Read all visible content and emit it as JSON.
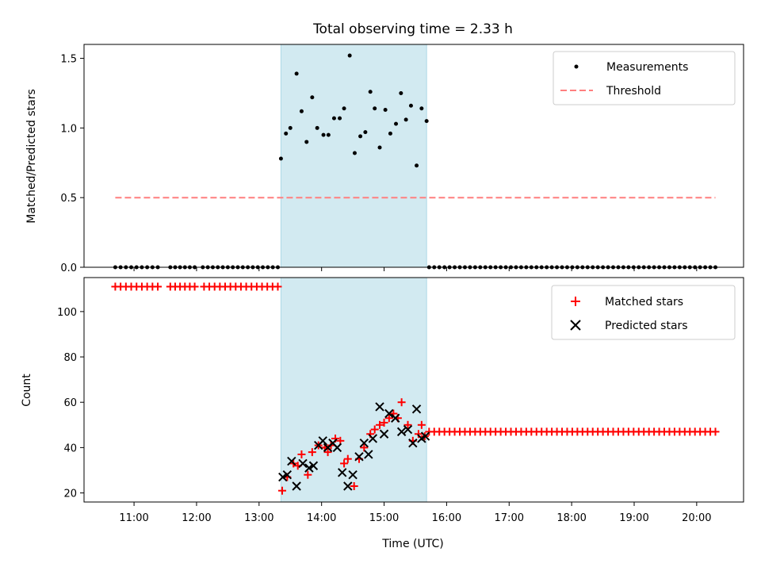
{
  "title": "Total observing time = 2.33 h",
  "colors": {
    "shade": "#add8e6",
    "threshold": "#ff7f7f",
    "matched": "#ff0000",
    "predicted": "#000000",
    "measurement": "#000000"
  },
  "chart_data": [
    {
      "type": "scatter",
      "panel": "top",
      "ylabel": "Matched/Predicted stars",
      "xlim": [
        10.2,
        20.75
      ],
      "ylim": [
        0,
        1.6
      ],
      "yticks": [
        0.0,
        0.5,
        1.0,
        1.5
      ],
      "ytick_labels": [
        "0.0",
        "0.5",
        "1.0",
        "1.5"
      ],
      "shaded_interval": [
        13.35,
        15.68
      ],
      "legend": {
        "placement": "top-right",
        "entries": [
          "Measurements",
          "Threshold"
        ]
      },
      "threshold": {
        "name": "Threshold",
        "y": 0.5,
        "x_range": [
          10.7,
          20.3
        ]
      },
      "series": [
        {
          "name": "Measurements",
          "points": [
            [
              13.35,
              0.78
            ],
            [
              13.43,
              0.96
            ],
            [
              13.5,
              1.0
            ],
            [
              13.6,
              1.39
            ],
            [
              13.68,
              1.12
            ],
            [
              13.76,
              0.9
            ],
            [
              13.85,
              1.22
            ],
            [
              13.93,
              1.0
            ],
            [
              14.03,
              0.95
            ],
            [
              14.11,
              0.95
            ],
            [
              14.2,
              1.07
            ],
            [
              14.29,
              1.07
            ],
            [
              14.36,
              1.14
            ],
            [
              14.45,
              1.52
            ],
            [
              14.53,
              0.82
            ],
            [
              14.62,
              0.94
            ],
            [
              14.7,
              0.97
            ],
            [
              14.78,
              1.26
            ],
            [
              14.85,
              1.14
            ],
            [
              14.93,
              0.86
            ],
            [
              15.02,
              1.13
            ],
            [
              15.1,
              0.96
            ],
            [
              15.19,
              1.03
            ],
            [
              15.27,
              1.25
            ],
            [
              15.35,
              1.06
            ],
            [
              15.43,
              1.16
            ],
            [
              15.52,
              0.73
            ],
            [
              15.6,
              1.14
            ],
            [
              15.68,
              1.05
            ]
          ],
          "zero_runs": [
            [
              10.7,
              11.38
            ],
            [
              11.58,
              11.97
            ],
            [
              12.1,
              13.3
            ],
            [
              15.72,
              20.3
            ]
          ]
        }
      ]
    },
    {
      "type": "scatter",
      "panel": "bottom",
      "ylabel": "Count",
      "xlabel": "Time (UTC)",
      "xlim": [
        10.2,
        20.75
      ],
      "ylim": [
        16,
        115
      ],
      "yticks": [
        20,
        40,
        60,
        80,
        100
      ],
      "ytick_labels": [
        "20",
        "40",
        "60",
        "80",
        "100"
      ],
      "xticks": [
        11,
        12,
        13,
        14,
        15,
        16,
        17,
        18,
        19,
        20
      ],
      "xtick_labels": [
        "11:00",
        "12:00",
        "13:00",
        "14:00",
        "15:00",
        "16:00",
        "17:00",
        "18:00",
        "19:00",
        "20:00"
      ],
      "shaded_interval": [
        13.35,
        15.68
      ],
      "legend": {
        "placement": "top-right",
        "entries": [
          "Matched stars",
          "Predicted stars"
        ]
      },
      "series": [
        {
          "name": "Matched stars",
          "marker": "plus",
          "points": [
            [
              13.37,
              21
            ],
            [
              13.45,
              27
            ],
            [
              13.55,
              33
            ],
            [
              13.62,
              32
            ],
            [
              13.68,
              37
            ],
            [
              13.78,
              28
            ],
            [
              13.85,
              38
            ],
            [
              13.95,
              41
            ],
            [
              14.05,
              40
            ],
            [
              14.1,
              38
            ],
            [
              14.15,
              41
            ],
            [
              14.22,
              44
            ],
            [
              14.3,
              43
            ],
            [
              14.36,
              33
            ],
            [
              14.42,
              35
            ],
            [
              14.52,
              23
            ],
            [
              14.6,
              35
            ],
            [
              14.68,
              40
            ],
            [
              14.78,
              46
            ],
            [
              14.85,
              48
            ],
            [
              14.93,
              50
            ],
            [
              15.0,
              51
            ],
            [
              15.08,
              53
            ],
            [
              15.15,
              55
            ],
            [
              15.22,
              53
            ],
            [
              15.28,
              60
            ],
            [
              15.38,
              50
            ],
            [
              15.46,
              43
            ],
            [
              15.55,
              46
            ],
            [
              15.6,
              50
            ],
            [
              15.65,
              45
            ]
          ],
          "constant_runs": [
            {
              "y": 111,
              "x_range": [
                10.7,
                11.38
              ]
            },
            {
              "y": 111,
              "x_range": [
                11.58,
                11.97
              ]
            },
            {
              "y": 111,
              "x_range": [
                12.12,
                13.3
              ]
            },
            {
              "y": 47,
              "x_range": [
                15.72,
                20.3
              ]
            }
          ]
        },
        {
          "name": "Predicted stars",
          "marker": "x",
          "points": [
            [
              13.38,
              27
            ],
            [
              13.45,
              28
            ],
            [
              13.52,
              34
            ],
            [
              13.6,
              23
            ],
            [
              13.7,
              33
            ],
            [
              13.8,
              31
            ],
            [
              13.87,
              32
            ],
            [
              13.95,
              41
            ],
            [
              14.02,
              43
            ],
            [
              14.1,
              40
            ],
            [
              14.18,
              42
            ],
            [
              14.25,
              40
            ],
            [
              14.33,
              29
            ],
            [
              14.42,
              23
            ],
            [
              14.5,
              28
            ],
            [
              14.6,
              36
            ],
            [
              14.68,
              42
            ],
            [
              14.75,
              37
            ],
            [
              14.82,
              44
            ],
            [
              14.93,
              58
            ],
            [
              15.0,
              46
            ],
            [
              15.08,
              55
            ],
            [
              15.18,
              53
            ],
            [
              15.28,
              47
            ],
            [
              15.38,
              48
            ],
            [
              15.46,
              42
            ],
            [
              15.52,
              57
            ],
            [
              15.6,
              44
            ],
            [
              15.66,
              45
            ]
          ]
        }
      ]
    }
  ]
}
